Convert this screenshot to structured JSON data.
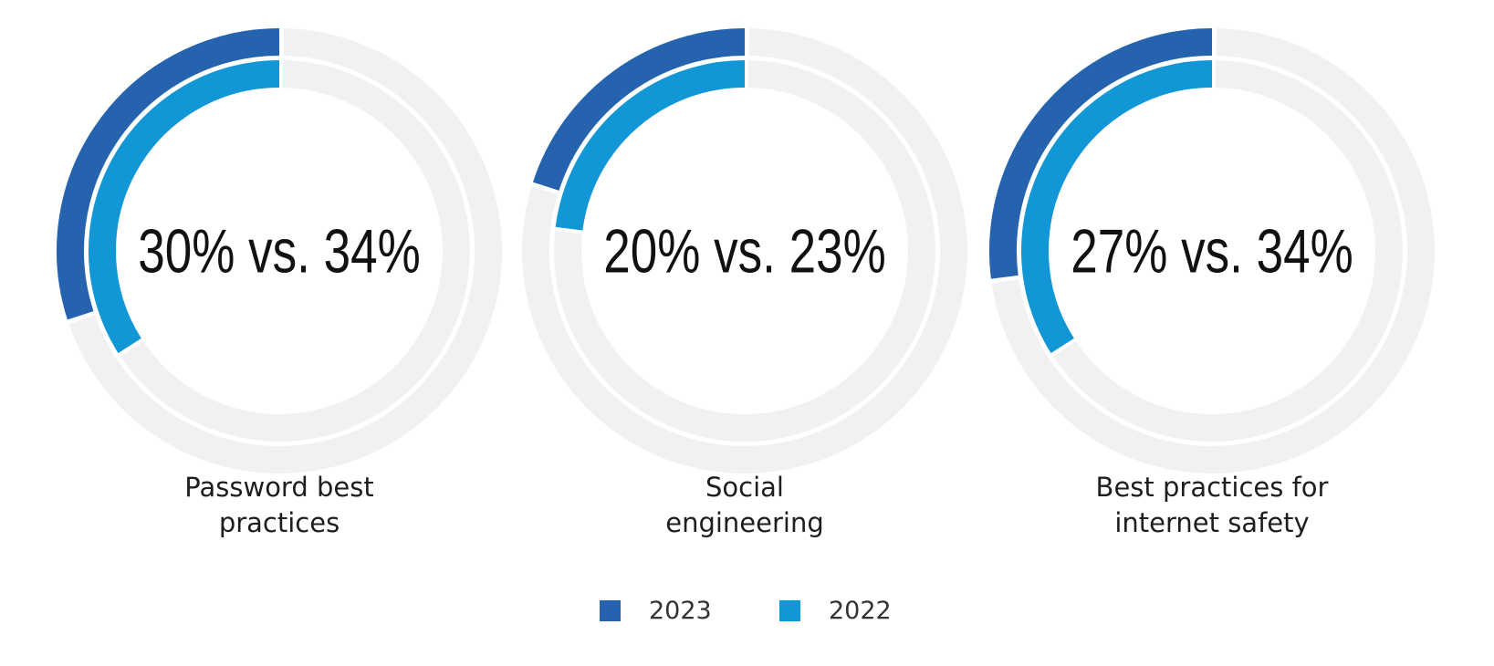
{
  "colors": {
    "series_2023": "#2563ae",
    "series_2022": "#1196d6",
    "track": "#f0f1f3"
  },
  "chart_data": [
    {
      "type": "donut",
      "category": "Password best practices",
      "center_label": "30% vs. 34%",
      "series": [
        {
          "name": "2023",
          "value": 30
        },
        {
          "name": "2022",
          "value": 34
        }
      ]
    },
    {
      "type": "donut",
      "category": "Social engineering",
      "center_label": "20% vs. 23%",
      "series": [
        {
          "name": "2023",
          "value": 20
        },
        {
          "name": "2022",
          "value": 23
        }
      ]
    },
    {
      "type": "donut",
      "category": "Best practices for internet safety",
      "center_label": "27% vs. 34%",
      "series": [
        {
          "name": "2023",
          "value": 27
        },
        {
          "name": "2022",
          "value": 34
        }
      ]
    }
  ],
  "labels": {
    "chart0": {
      "line1": "Password best",
      "line2": "practices"
    },
    "chart1": {
      "line1": "Social",
      "line2": "engineering"
    },
    "chart2": {
      "line1": "Best practices for",
      "line2": "internet safety"
    }
  },
  "legend": [
    {
      "label": "2023"
    },
    {
      "label": "2022"
    }
  ]
}
